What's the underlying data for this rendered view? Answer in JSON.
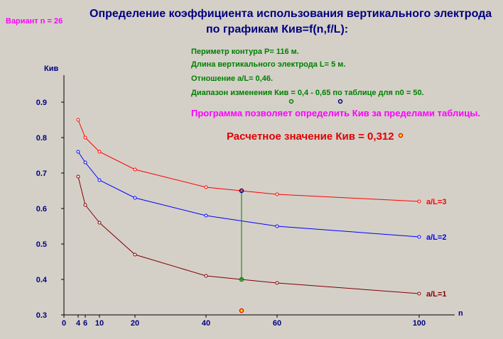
{
  "variant": "Вариант  n = 26",
  "title": {
    "line1": "Определение коэффициента использования вертикального электрода",
    "line2": "по графикам Кив=f(n,f/L):"
  },
  "info": {
    "perimeter": "Периметр контура P= 116 м.",
    "electrode_length": "Длина вертикального электрода L= 5 м.",
    "ratio": "Отношение a/L= 0,46.",
    "range": "Диапазон изменения Кив = 0,4    -  0,65  по таблице для n0 = 50."
  },
  "program_note": "Программа позволяет определить Кив за пределами таблицы.",
  "calc_result": "Расчетное значение Кив = 0,312",
  "colors": {
    "background": "#d4d0c8",
    "series_a3": "#ff0000",
    "series_a2": "#0000ff",
    "series_a1": "#800000",
    "marker_green": "#008000",
    "marker_blue": "#000080",
    "calc_marker": "#ff0000",
    "axis": "#000000"
  },
  "chart_data": {
    "type": "line",
    "ylabel": "Кив",
    "xlabel": "n",
    "xlim": [
      0,
      100
    ],
    "ylim": [
      0.3,
      0.9
    ],
    "x_ticks": [
      0,
      4,
      6,
      10,
      20,
      40,
      60,
      100
    ],
    "x_tick_labels": [
      "0",
      "4",
      "6",
      "10",
      "20",
      "40",
      "60",
      "100"
    ],
    "y_ticks": [
      0.3,
      0.4,
      0.5,
      0.6,
      0.7,
      0.8,
      0.9
    ],
    "y_tick_labels": [
      "0.3",
      "0.4",
      "0.5",
      "0.6",
      "0.7",
      "0.8",
      "0.9"
    ],
    "grid": false,
    "series": [
      {
        "name": "a/L=3",
        "color": "#ff0000",
        "x": [
          4,
          6,
          10,
          20,
          40,
          60,
          100
        ],
        "y": [
          0.85,
          0.8,
          0.76,
          0.71,
          0.66,
          0.64,
          0.62
        ]
      },
      {
        "name": "a/L=2",
        "color": "#0000ff",
        "x": [
          4,
          6,
          10,
          20,
          40,
          60,
          100
        ],
        "y": [
          0.76,
          0.73,
          0.68,
          0.63,
          0.58,
          0.55,
          0.52
        ]
      },
      {
        "name": "a/L=1",
        "color": "#800000",
        "x": [
          4,
          6,
          10,
          20,
          40,
          60,
          100
        ],
        "y": [
          0.69,
          0.61,
          0.56,
          0.47,
          0.41,
          0.39,
          0.36
        ]
      }
    ],
    "range_line": {
      "x": 50,
      "y_low": 0.4,
      "y_high": 0.65
    },
    "calc_point": {
      "x": 50,
      "y": 0.312
    }
  }
}
